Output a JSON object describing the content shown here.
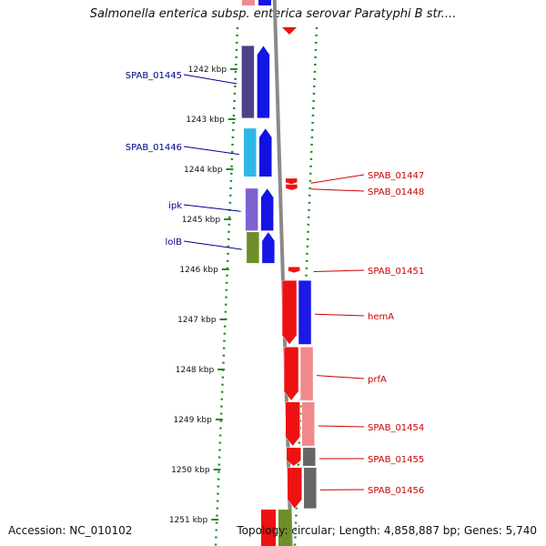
{
  "title": "Salmonella enterica subsp. enterica serovar Paratyphi B str....",
  "footer": {
    "accession": "Accession: NC_010102",
    "topology": "Topology: circular; Length: 4,858,887 bp; Genes: 5,740"
  },
  "colors": {
    "background": "#ffffff",
    "left_gene_label": "#00008b",
    "right_gene_label": "#cc0000",
    "tick_marks": "#228b22",
    "backbone": "#8a8a8a"
  },
  "scale_unit": "kbp",
  "scale_ticks": [
    {
      "position_kbp": 1242,
      "label": "1242 kbp"
    },
    {
      "position_kbp": 1243,
      "label": "1243 kbp"
    },
    {
      "position_kbp": 1244,
      "label": "1244 kbp"
    },
    {
      "position_kbp": 1245,
      "label": "1245 kbp"
    },
    {
      "position_kbp": 1246,
      "label": "1246 kbp"
    },
    {
      "position_kbp": 1247,
      "label": "1247 kbp"
    },
    {
      "position_kbp": 1248,
      "label": "1248 kbp"
    },
    {
      "position_kbp": 1249,
      "label": "1249 kbp"
    },
    {
      "position_kbp": 1250,
      "label": "1250 kbp"
    },
    {
      "position_kbp": 1251,
      "label": "1251 kbp"
    }
  ],
  "left_genes": [
    {
      "name": "SPAB_01445",
      "start_kbp": 1241.53,
      "end_kbp": 1242.98,
      "color_a": "#4b4289",
      "color_b": "#1515e6"
    },
    {
      "name": "SPAB_01446",
      "start_kbp": 1243.18,
      "end_kbp": 1244.15,
      "color_a": "#2db8e8",
      "color_b": "#1212e0"
    },
    {
      "name": "ipk",
      "start_kbp": 1244.38,
      "end_kbp": 1245.23,
      "color_a": "#7d62d0",
      "color_b": "#1414e4"
    },
    {
      "name": "lolB",
      "start_kbp": 1245.25,
      "end_kbp": 1245.88,
      "color_a": "#6e8f28",
      "color_b": "#1616e6"
    }
  ],
  "right_genes": [
    {
      "name": "SPAB_01447",
      "start_kbp": 1244.18,
      "end_kbp": 1244.3,
      "color_a": "#ee1111",
      "color_b": ""
    },
    {
      "name": "SPAB_01448",
      "start_kbp": 1244.3,
      "end_kbp": 1244.42,
      "color_a": "#ee1111",
      "color_b": ""
    },
    {
      "name": "SPAB_01451",
      "start_kbp": 1245.95,
      "end_kbp": 1246.07,
      "color_a": "#ee1111",
      "color_b": ""
    },
    {
      "name": "hemA",
      "start_kbp": 1246.22,
      "end_kbp": 1247.5,
      "color_a": "#ee1111",
      "color_b": "#1a1ae6"
    },
    {
      "name": "prfA",
      "start_kbp": 1247.55,
      "end_kbp": 1248.62,
      "color_a": "#ee1111",
      "color_b": "#f08a8a"
    },
    {
      "name": "SPAB_01454",
      "start_kbp": 1248.65,
      "end_kbp": 1249.53,
      "color_a": "#ee1111",
      "color_b": "#f08a8a"
    },
    {
      "name": "SPAB_01455",
      "start_kbp": 1249.56,
      "end_kbp": 1249.93,
      "color_a": "#ee1111",
      "color_b": "#666666"
    },
    {
      "name": "SPAB_01456",
      "start_kbp": 1249.96,
      "end_kbp": 1250.78,
      "color_a": "#ee1111",
      "color_b": "#666666"
    }
  ]
}
